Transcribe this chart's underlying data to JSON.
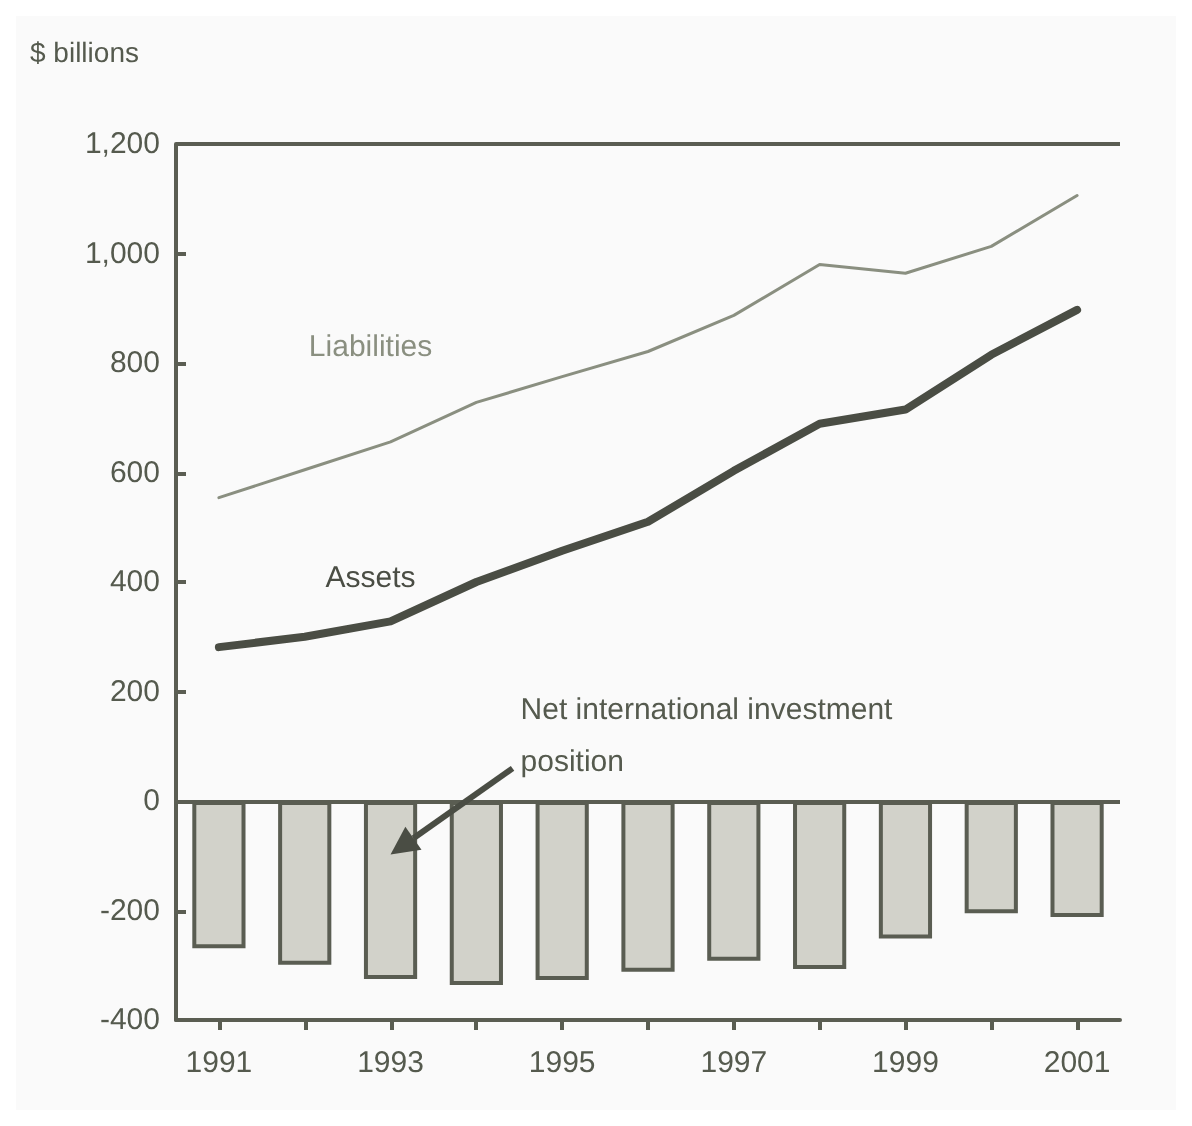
{
  "chart_data": {
    "type": "bar",
    "ylabel": "$ billions",
    "categories": [
      "1991",
      null,
      "1993",
      null,
      "1995",
      null,
      "1997",
      null,
      "1999",
      null,
      "2001"
    ],
    "series": [
      {
        "name": null,
        "color": "#d2d2ca",
        "values": [
          -269,
          -299,
          -325,
          -336,
          -327,
          -312,
          -292,
          -307,
          -251,
          -205,
          -212
        ]
      },
      {
        "name": "Liabilities",
        "type": "line",
        "color": "#8a8f80",
        "values": [
          554,
          605,
          656,
          728,
          775,
          821,
          887,
          980,
          964,
          1013,
          1106
        ]
      },
      {
        "name": "Assets",
        "type": "line",
        "color": "#4a4d44",
        "values": [
          281,
          300,
          328,
          400,
          457,
          510,
          603,
          689,
          715,
          815,
          897
        ]
      }
    ],
    "ylim": [
      -400,
      1200
    ],
    "yticks": [
      -400,
      -200,
      0,
      200,
      400,
      600,
      800,
      {
        "value": 1000,
        "label": "1,000"
      },
      {
        "value": 1200,
        "label": "1,200"
      }
    ],
    "ref_lines": [
      {
        "axis": "y",
        "value": 0,
        "label": null,
        "color": "#5a5d52"
      }
    ],
    "annotations": [
      "Net international investment position"
    ],
    "grid": false,
    "legend": false,
    "marker": "none",
    "line_style": "solid"
  }
}
